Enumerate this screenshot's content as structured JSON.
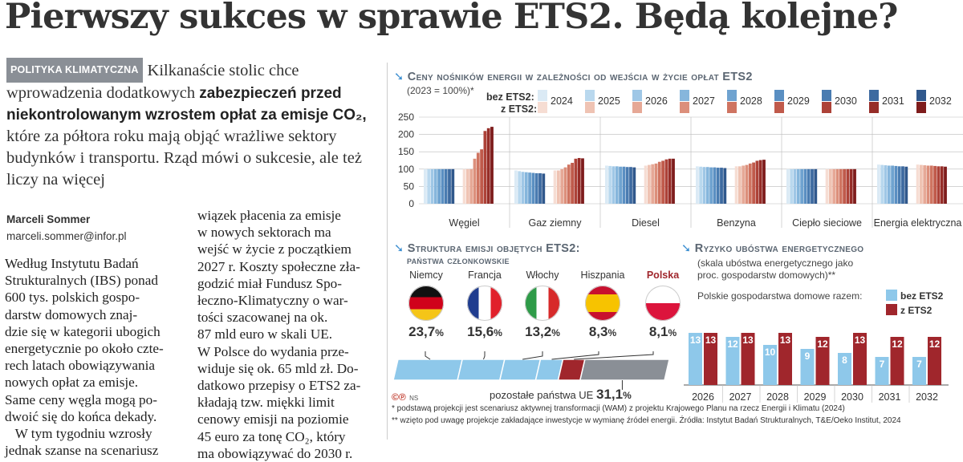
{
  "headline": "Pierwszy sukces w sprawie ETS2. Będą kolejne?",
  "lede": {
    "tag": "POLITYKA KLIMATYCZNA",
    "part1": "Kilkanaście stolic chce wprowadzenia dodatkowych ",
    "bold": "zabezpieczeń przed niekontrolowanym wzrostem opłat za emisje CO₂,",
    "part2": " które za półtora roku mają objąć wrażliwe sektory budynków i transportu. Rząd mówi o sukcesie, ale też liczy na więcej"
  },
  "author": {
    "name": "Marceli Sommer",
    "email": "marceli.sommer@infor.pl"
  },
  "body": {
    "col1": "Według Instytutu Badań\nStrukturalnych (IBS) ponad\n600 tys. polskich gospo-\ndarstw domowych znaj-\ndzie się w kategorii ubogich\nenergetycznie po około czte-\nrech latach obowiązywania\nnowych opłat za emisje.\nSame ceny węgla mogą po-\ndwoić się do końca dekady.\n   W tym tygodniu wzrosły\njednak szanse na scenariusz",
    "col2": "wiązek płacenia za emisje\nw nowych sektorach ma\nwejść w życie z początkiem\n2027 r. Koszty społeczne zła-\ngodzić miał Fundusz Spo-\nłeczno-Klimatyczny o war-\ntości szacowanej na ok.\n87 mld euro w skali UE.\nW Polsce do wydania prze-\nwiduje się ok. 65 mld zł. Do-\ndatkowo przepisy o ETS2 za-\nkładają tzw. miękki limit\ncenowy emisji na poziomie\n45 euro za tonę CO₂, który\nma obowiązywać do 2030 r."
  },
  "colors": {
    "bez": [
      "#dbeaf5",
      "#b9d8ee",
      "#9fc7e6",
      "#86b6dc",
      "#6fa3d0",
      "#5a8fc2",
      "#4a7cb1",
      "#3d6aa0",
      "#30588c"
    ],
    "z": [
      "#f6ddd3",
      "#efc3b3",
      "#e6a896",
      "#dc8f7b",
      "#cf7461",
      "#c05a4b",
      "#ad4238",
      "#962d28",
      "#7e1c1c"
    ],
    "flow_blue": "#8ec8ea",
    "flow_red": "#a0262c",
    "flow_grey": "#8a8f96",
    "risk_blue": "#8ec8ea",
    "risk_red": "#a0262c"
  },
  "chart_data": [
    {
      "type": "bar",
      "title": "Ceny nośników energii w zależności od wejścia w życie opłat ETS2",
      "subtitle": "(2023 = 100%)*",
      "legend_bez": "bez ETS2:",
      "legend_z": "z ETS2:",
      "years": [
        "2024",
        "2025",
        "2026",
        "2027",
        "2028",
        "2029",
        "2030",
        "2031",
        "2032"
      ],
      "categories": [
        "Węgiel",
        "Gaz ziemny",
        "Diesel",
        "Benzyna",
        "Ciepło sieciowe",
        "Energia elektryczna"
      ],
      "series": [
        {
          "name": "bez ETS2",
          "values": [
            [
              100,
              100,
              100,
              100,
              100,
              100,
              100,
              100,
              100
            ],
            [
              96,
              94,
              92,
              91,
              90,
              89,
              88,
              88,
              87
            ],
            [
              110,
              109,
              108,
              108,
              107,
              107,
              106,
              106,
              105
            ],
            [
              108,
              107,
              106,
              106,
              105,
              105,
              104,
              104,
              103
            ],
            [
              100,
              100,
              100,
              100,
              100,
              100,
              100,
              100,
              100
            ],
            [
              113,
              112,
              111,
              110,
              110,
              109,
              108,
              108,
              107
            ]
          ]
        },
        {
          "name": "z ETS2",
          "values": [
            [
              100,
              100,
              100,
              130,
              147,
              157,
              210,
              218,
              222
            ],
            [
              96,
              96,
              100,
              105,
              113,
              118,
              130,
              132,
              131
            ],
            [
              110,
              112,
              114,
              116,
              121,
              124,
              128,
              130,
              130
            ],
            [
              108,
              108,
              110,
              112,
              116,
              119,
              124,
              126,
              127
            ],
            [
              100,
              100,
              100,
              100,
              100,
              100,
              100,
              100,
              100
            ],
            [
              113,
              112,
              111,
              110,
              110,
              109,
              108,
              108,
              107
            ]
          ]
        }
      ],
      "ylim": [
        0,
        250
      ],
      "yticks": [
        0,
        50,
        100,
        150,
        200,
        250
      ]
    },
    {
      "type": "bar",
      "title": "Struktura emisji objętych ETS2:",
      "title2": "państwa członkowskie",
      "categories": [
        "Niemcy",
        "Francja",
        "Włochy",
        "Hiszpania",
        "Polska"
      ],
      "values": [
        23.7,
        15.6,
        13.2,
        8.3,
        8.1
      ],
      "labels": [
        "23,7",
        "15,6",
        "13,2",
        "8,3",
        "8,1"
      ],
      "percent_sign": "%",
      "rest_label": "pozostałe państwa UE",
      "rest_value": 31.1,
      "rest_value_label": "31,1",
      "source_mark": "©℗",
      "source_initials": "NS"
    },
    {
      "type": "bar",
      "title": "Ryzyko ubóstwa energetycznego",
      "subtitle": "(skala ubóstwa energetycznego jako proc. gospodarstw domowych)**",
      "legend_intro": "Polskie gospodarstwa domowe razem:",
      "categories": [
        "2026",
        "2027",
        "2028",
        "2029",
        "2030",
        "2031",
        "2032"
      ],
      "series": [
        {
          "name": "bez ETS2",
          "values": [
            13,
            12,
            10,
            9,
            8,
            7,
            7
          ]
        },
        {
          "name": "z ETS2",
          "values": [
            13,
            13,
            13,
            12,
            13,
            12,
            12
          ]
        }
      ],
      "ylim": [
        0,
        14
      ]
    }
  ],
  "footnotes": {
    "f1": "* podstawą projekcji jest scenariusz aktywnej transformacji (WAM) z projektu Krajowego Planu na rzecz Energii i Klimatu (2024)",
    "f2": "** wzięto pod uwagę projekcje zakładające inwestycje w wymianę źródeł energii. Źródła: Instytut Badań Strukturalnych, T&E/Oeko Institut, 2024"
  }
}
